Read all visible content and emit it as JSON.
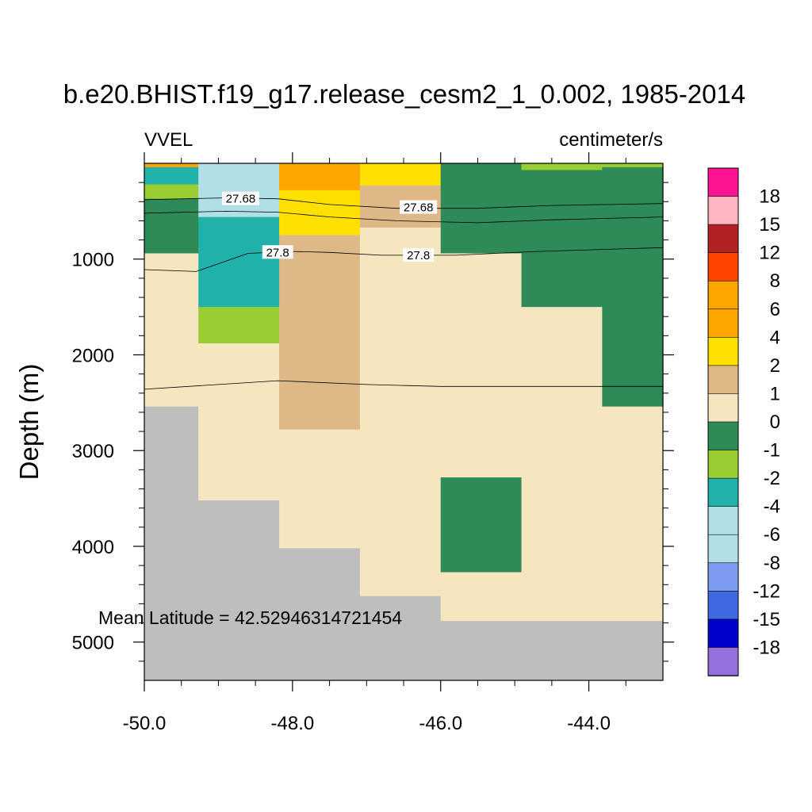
{
  "chart_data": {
    "type": "heatmap",
    "title": "b.e20.BHIST.f19_g17.release_cesm2_1_0.002, 1985-2014",
    "left_label": "VVEL",
    "right_label": "centimeter/s",
    "xlabel": "",
    "ylabel": "Depth (m)",
    "xlim": [
      -50.0,
      -43.0
    ],
    "ylim": [
      0,
      5400
    ],
    "y_inverted": true,
    "x_ticks": [
      -50.0,
      -48.0,
      -46.0,
      -44.0
    ],
    "x_tick_labels": [
      "-50.0",
      "-48.0",
      "-46.0",
      "-44.0"
    ],
    "y_ticks": [
      1000,
      2000,
      3000,
      4000,
      5000
    ],
    "y_tick_labels": [
      "1000",
      "2000",
      "3000",
      "4000",
      "5000"
    ],
    "annotation": "Mean Latitude = 42.52946314721454",
    "missing_color": "#bebebe",
    "colorbar": {
      "labels": [
        "18",
        "15",
        "12",
        "8",
        "6",
        "4",
        "2",
        "1",
        "0",
        "-1",
        "-2",
        "-4",
        "-6",
        "-8",
        "-12",
        "-15",
        "-18"
      ],
      "colors": [
        "#ff1493",
        "#ffb6c1",
        "#b22222",
        "#ff4500",
        "#ffa500",
        "#ffa500",
        "#ffe100",
        "#deb887",
        "#f5e6bf",
        "#2e8b57",
        "#9acd32",
        "#20b2aa",
        "#b0e0e6",
        "#b0e0e6",
        "#7b9cf0",
        "#4169e1",
        "#0000cd",
        "#9370db"
      ]
    },
    "cells": [
      {
        "x0": -50.0,
        "x1": -49.27,
        "d0": 0,
        "d1": 120,
        "color": "#ffa500"
      },
      {
        "x0": -50.0,
        "x1": -49.27,
        "d0": 40,
        "d1": 220,
        "color": "#20b2aa"
      },
      {
        "x0": -50.0,
        "x1": -49.27,
        "d0": 220,
        "d1": 370,
        "color": "#9acd32"
      },
      {
        "x0": -50.0,
        "x1": -49.27,
        "d0": 370,
        "d1": 940,
        "color": "#2e8b57"
      },
      {
        "x0": -50.0,
        "x1": -49.27,
        "d0": 940,
        "d1": 2540,
        "color": "#f5e6bf"
      },
      {
        "x0": -49.27,
        "x1": -48.18,
        "d0": 0,
        "d1": 560,
        "color": "#b0e0e6"
      },
      {
        "x0": -49.27,
        "x1": -48.18,
        "d0": 560,
        "d1": 1500,
        "color": "#20b2aa"
      },
      {
        "x0": -49.27,
        "x1": -48.18,
        "d0": 1500,
        "d1": 1880,
        "color": "#9acd32"
      },
      {
        "x0": -49.27,
        "x1": -48.18,
        "d0": 1880,
        "d1": 3520,
        "color": "#f5e6bf"
      },
      {
        "x0": -48.18,
        "x1": -47.09,
        "d0": 0,
        "d1": 280,
        "color": "#ffa500"
      },
      {
        "x0": -48.18,
        "x1": -47.09,
        "d0": 280,
        "d1": 750,
        "color": "#ffe100"
      },
      {
        "x0": -48.18,
        "x1": -47.09,
        "d0": 750,
        "d1": 2780,
        "color": "#deb887"
      },
      {
        "x0": -48.18,
        "x1": -47.09,
        "d0": 2780,
        "d1": 4020,
        "color": "#f5e6bf"
      },
      {
        "x0": -47.09,
        "x1": -46.0,
        "d0": 0,
        "d1": 230,
        "color": "#ffe100"
      },
      {
        "x0": -47.09,
        "x1": -46.0,
        "d0": 230,
        "d1": 670,
        "color": "#deb887"
      },
      {
        "x0": -47.09,
        "x1": -46.0,
        "d0": 670,
        "d1": 4520,
        "color": "#f5e6bf"
      },
      {
        "x0": -46.0,
        "x1": -44.91,
        "d0": 0,
        "d1": 940,
        "color": "#2e8b57"
      },
      {
        "x0": -46.0,
        "x1": -44.91,
        "d0": 940,
        "d1": 3280,
        "color": "#f5e6bf"
      },
      {
        "x0": -46.0,
        "x1": -44.91,
        "d0": 3280,
        "d1": 4270,
        "color": "#2e8b57"
      },
      {
        "x0": -46.0,
        "x1": -44.91,
        "d0": 4270,
        "d1": 4780,
        "color": "#f5e6bf"
      },
      {
        "x0": -44.91,
        "x1": -43.82,
        "d0": 0,
        "d1": 70,
        "color": "#9acd32"
      },
      {
        "x0": -44.91,
        "x1": -43.82,
        "d0": 70,
        "d1": 1500,
        "color": "#2e8b57"
      },
      {
        "x0": -44.91,
        "x1": -43.82,
        "d0": 1500,
        "d1": 4780,
        "color": "#f5e6bf"
      },
      {
        "x0": -43.82,
        "x1": -43.0,
        "d0": 0,
        "d1": 40,
        "color": "#9acd32"
      },
      {
        "x0": -43.82,
        "x1": -43.0,
        "d0": 40,
        "d1": 2540,
        "color": "#2e8b57"
      },
      {
        "x0": -43.82,
        "x1": -43.0,
        "d0": 2540,
        "d1": 4780,
        "color": "#f5e6bf"
      }
    ],
    "missing_region": [
      [
        -50.0,
        2540
      ],
      [
        -49.27,
        2540
      ],
      [
        -49.27,
        3520
      ],
      [
        -48.18,
        3520
      ],
      [
        -48.18,
        4020
      ],
      [
        -47.09,
        4020
      ],
      [
        -47.09,
        4520
      ],
      [
        -46.0,
        4520
      ],
      [
        -46.0,
        4780
      ],
      [
        -43.0,
        4780
      ],
      [
        -43.0,
        5400
      ],
      [
        -50.0,
        5400
      ]
    ],
    "contours": [
      {
        "level": "27.68",
        "points": [
          [
            -50.0,
            380
          ],
          [
            -48.9,
            360
          ],
          [
            -48.2,
            370
          ],
          [
            -47.5,
            430
          ],
          [
            -46.6,
            470
          ],
          [
            -45.5,
            470
          ],
          [
            -44.5,
            440
          ],
          [
            -43.0,
            420
          ]
        ],
        "label_at": [
          [
            -48.7,
            370
          ],
          [
            -46.3,
            460
          ]
        ]
      },
      {
        "level": "",
        "points": [
          [
            -50.0,
            520
          ],
          [
            -48.9,
            500
          ],
          [
            -48.2,
            510
          ],
          [
            -47.5,
            560
          ],
          [
            -46.6,
            600
          ],
          [
            -45.5,
            620
          ],
          [
            -44.5,
            590
          ],
          [
            -43.0,
            560
          ]
        ],
        "label_at": []
      },
      {
        "level": "27.8",
        "points": [
          [
            -50.0,
            1110
          ],
          [
            -49.3,
            1130
          ],
          [
            -48.6,
            940
          ],
          [
            -48.0,
            920
          ],
          [
            -47.5,
            930
          ],
          [
            -46.8,
            960
          ],
          [
            -45.8,
            960
          ],
          [
            -44.7,
            920
          ],
          [
            -43.0,
            880
          ]
        ],
        "label_at": [
          [
            -48.2,
            930
          ],
          [
            -46.3,
            960
          ]
        ]
      },
      {
        "level": "",
        "points": [
          [
            -50.0,
            2360
          ],
          [
            -48.2,
            2270
          ],
          [
            -47.0,
            2310
          ],
          [
            -46.0,
            2330
          ],
          [
            -43.0,
            2330
          ]
        ],
        "label_at": []
      }
    ]
  }
}
